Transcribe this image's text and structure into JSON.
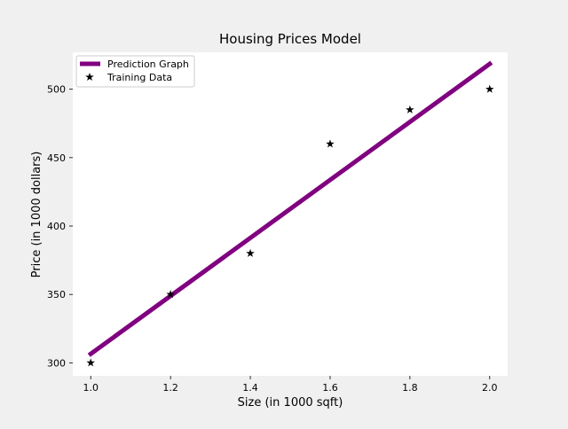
{
  "chart_data": {
    "type": "line",
    "title": "Housing Prices Model",
    "xlabel": "Size (in 1000 sqft)",
    "ylabel": "Price (in 1000 dollars)",
    "xlim": [
      0.955,
      2.045
    ],
    "ylim": [
      290.5,
      527
    ],
    "xticks": [
      1.0,
      1.2,
      1.4,
      1.6,
      1.8,
      2.0
    ],
    "xtick_labels": [
      "1.0",
      "1.2",
      "1.4",
      "1.6",
      "1.8",
      "2.0"
    ],
    "yticks": [
      300,
      350,
      400,
      450,
      500
    ],
    "ytick_labels": [
      "300",
      "350",
      "400",
      "450",
      "500"
    ],
    "grid": false,
    "legend_position": "top-left",
    "series": [
      {
        "name": "Prediction Graph",
        "kind": "line",
        "color": "#800080",
        "x": [
          1.0,
          2.0
        ],
        "y": [
          306.5,
          518.5
        ]
      },
      {
        "name": "Training Data",
        "kind": "scatter",
        "marker": "star",
        "color": "#000000",
        "x": [
          1.0,
          1.2,
          1.4,
          1.6,
          1.8,
          2.0
        ],
        "y": [
          300,
          350,
          380,
          460,
          485,
          500
        ]
      }
    ]
  }
}
